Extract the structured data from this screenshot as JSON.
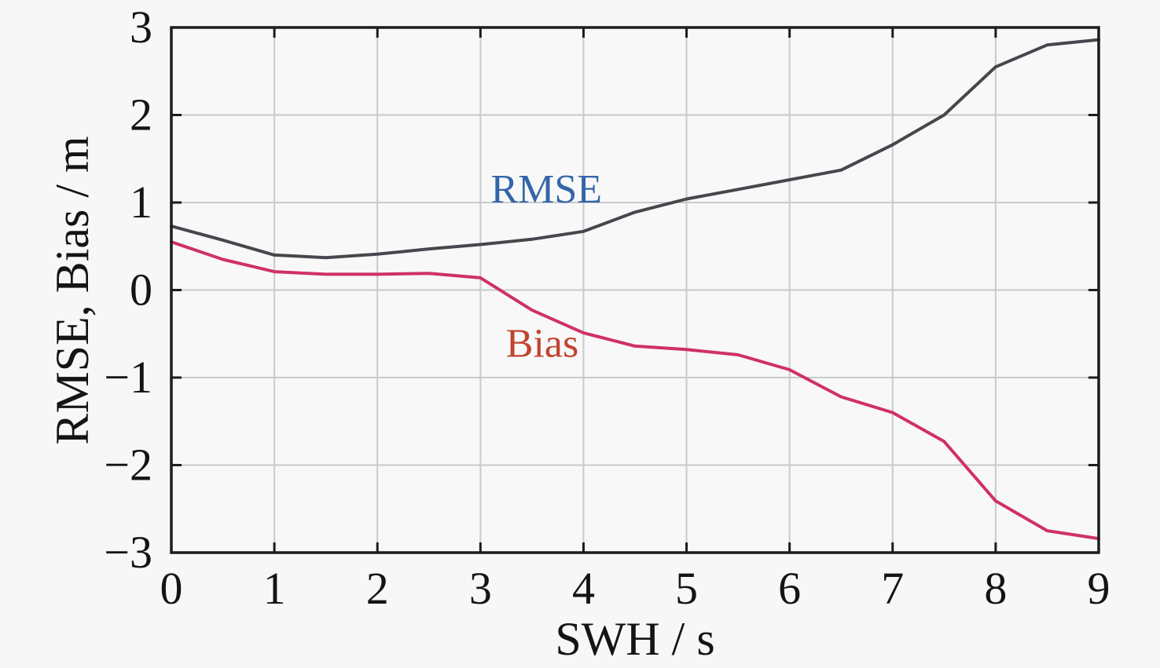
{
  "figure": {
    "background": "#f7f7f8"
  },
  "styles": {
    "grid_color": "#c9cacb",
    "axis_color": "#1c1c1c",
    "tick_color": "#141414"
  },
  "chart_data": {
    "type": "line",
    "title": "",
    "xlabel": "SWH / s",
    "ylabel": "RMSE, Bias / m",
    "xlim": [
      0,
      9
    ],
    "ylim": [
      -3,
      3
    ],
    "grid": true,
    "legend_position": "in-plot text annotations",
    "x": [
      0,
      0.5,
      1,
      1.5,
      2,
      2.5,
      3,
      3.5,
      4,
      4.5,
      5,
      5.5,
      6,
      6.5,
      7,
      7.5,
      8,
      8.5,
      9
    ],
    "series": [
      {
        "name": "RMSE",
        "color": "#46474c",
        "values": [
          0.73,
          0.57,
          0.4,
          0.37,
          0.41,
          0.47,
          0.52,
          0.58,
          0.67,
          0.89,
          1.04,
          1.15,
          1.26,
          1.37,
          1.66,
          2.0,
          2.55,
          2.8,
          2.86
        ]
      },
      {
        "name": "Bias",
        "color": "#cf3166",
        "values": [
          0.55,
          0.35,
          0.21,
          0.18,
          0.18,
          0.19,
          0.14,
          -0.23,
          -0.49,
          -0.64,
          -0.68,
          -0.74,
          -0.91,
          -1.22,
          -1.4,
          -1.73,
          -2.41,
          -2.75,
          -2.84
        ]
      }
    ],
    "xticks": {
      "values": [
        0,
        1,
        2,
        3,
        4,
        5,
        6,
        7,
        8,
        9
      ],
      "labels": [
        "0",
        "1",
        "2",
        "3",
        "4",
        "5",
        "6",
        "7",
        "8",
        "9"
      ]
    },
    "yticks": {
      "values": [
        3,
        2,
        1,
        0,
        -1,
        -2,
        -3
      ],
      "labels": [
        "3",
        "2",
        "1",
        "0",
        "−1",
        "−2",
        "−3"
      ]
    },
    "annotations": [
      {
        "text": "RMSE",
        "x": 3.64,
        "y": 1.16,
        "color": "#3465a8"
      },
      {
        "text": "Bias",
        "x": 3.6,
        "y": -0.6,
        "color": "#c1452e"
      }
    ]
  }
}
